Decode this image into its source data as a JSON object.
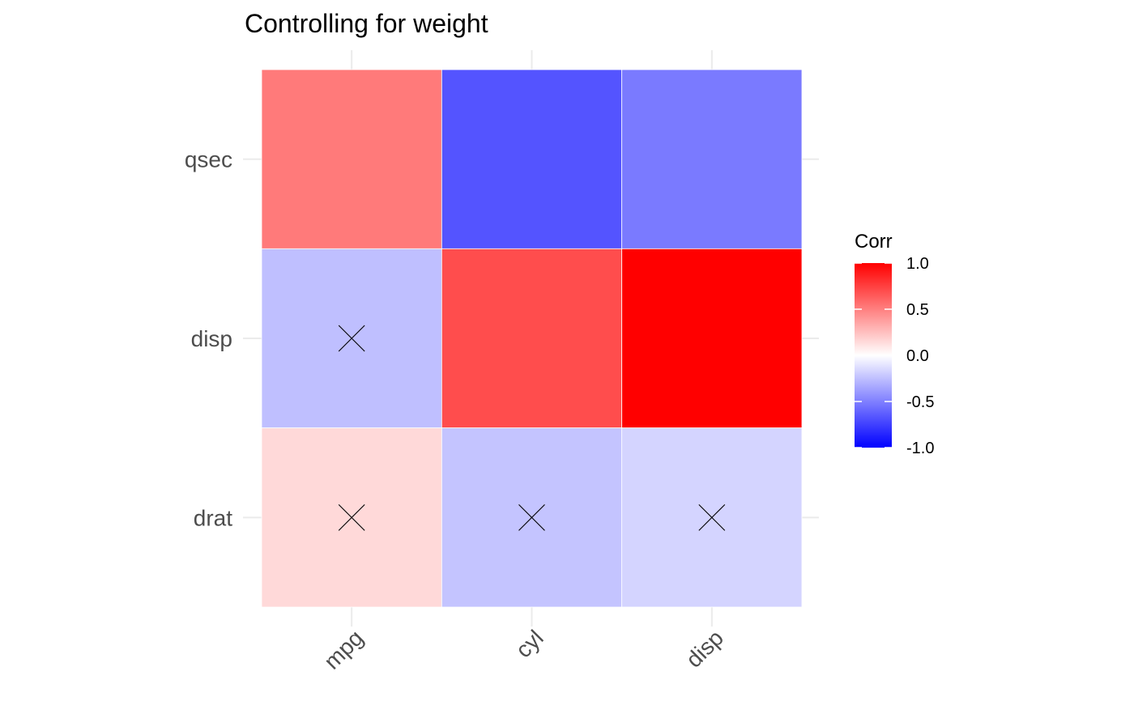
{
  "chart_data": {
    "type": "heatmap",
    "title": "Controlling for weight",
    "x_categories": [
      "mpg",
      "cyl",
      "disp"
    ],
    "y_categories": [
      "drat",
      "disp",
      "qsec"
    ],
    "cells": [
      {
        "x": "mpg",
        "y": "qsec",
        "value": 0.52,
        "insignificant": false
      },
      {
        "x": "cyl",
        "y": "qsec",
        "value": -0.67,
        "insignificant": false
      },
      {
        "x": "disp",
        "y": "qsec",
        "value": -0.52,
        "insignificant": false
      },
      {
        "x": "mpg",
        "y": "disp",
        "value": -0.25,
        "insignificant": true
      },
      {
        "x": "cyl",
        "y": "disp",
        "value": 0.7,
        "insignificant": false
      },
      {
        "x": "disp",
        "y": "disp",
        "value": 1.0,
        "insignificant": false
      },
      {
        "x": "mpg",
        "y": "drat",
        "value": 0.15,
        "insignificant": true
      },
      {
        "x": "cyl",
        "y": "drat",
        "value": -0.23,
        "insignificant": true
      },
      {
        "x": "disp",
        "y": "drat",
        "value": -0.17,
        "insignificant": true
      }
    ],
    "legend": {
      "title": "Corr",
      "ticks": [
        1.0,
        0.5,
        0.0,
        -0.5,
        -1.0
      ],
      "tick_labels": [
        "1.0",
        "0.5",
        "0.0",
        "-0.5",
        "-1.0"
      ],
      "range": [
        -1.0,
        1.0
      ],
      "placement": "right"
    },
    "colors": {
      "low": "#0000ff",
      "mid": "#ffffff",
      "high": "#ff0000"
    },
    "grid": true
  }
}
